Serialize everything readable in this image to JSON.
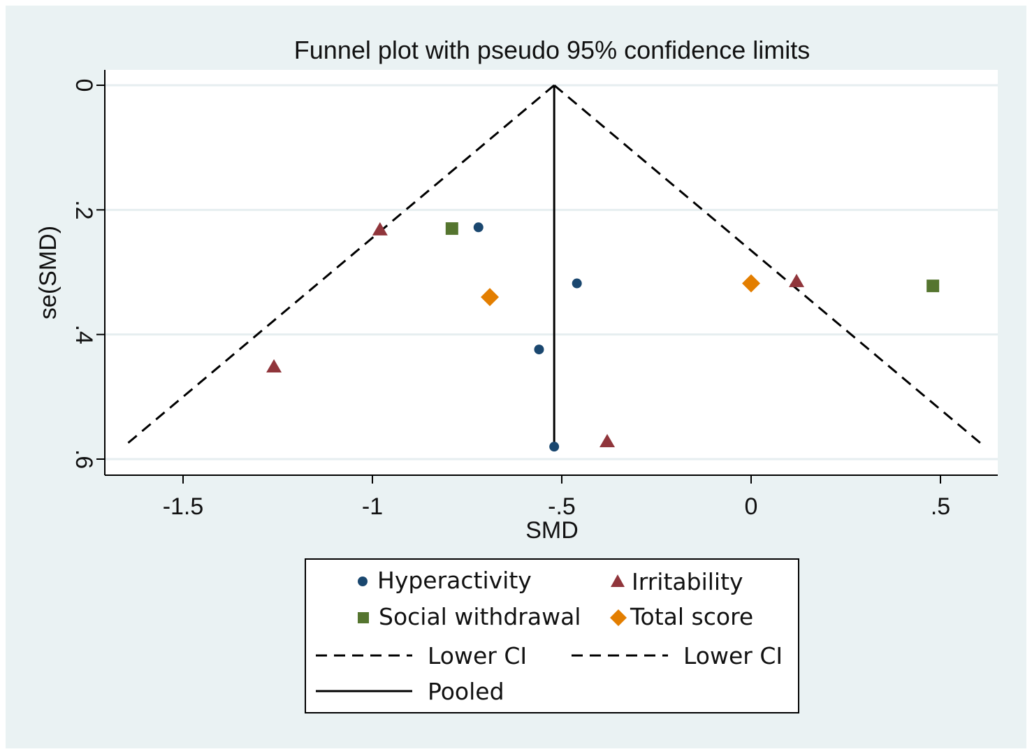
{
  "chart_data": {
    "type": "scatter",
    "title": "Funnel plot with pseudo 95% confidence limits",
    "xlabel": "SMD",
    "ylabel": "se(SMD)",
    "xlim": [
      -1.7,
      0.66
    ],
    "ylim": [
      0,
      0.62
    ],
    "y_reversed": true,
    "grid": "horizontal",
    "x_ticks": [
      {
        "value": -1.5,
        "label": "-1.5"
      },
      {
        "value": -1,
        "label": "-1"
      },
      {
        "value": -0.5,
        "label": "-.5"
      },
      {
        "value": 0,
        "label": "0"
      },
      {
        "value": 0.5,
        "label": ".5"
      }
    ],
    "y_ticks": [
      {
        "value": 0,
        "label": "0"
      },
      {
        "value": 0.2,
        "label": ".2"
      },
      {
        "value": 0.4,
        "label": ".4"
      },
      {
        "value": 0.6,
        "label": ".6"
      }
    ],
    "pooled_smd": -0.52,
    "funnel_se_max": 0.58,
    "series": [
      {
        "name": "Hyperactivity",
        "marker": "circle",
        "color": "#1a476f",
        "points": [
          {
            "x": -0.72,
            "y": 0.228
          },
          {
            "x": -0.46,
            "y": 0.318
          },
          {
            "x": -0.56,
            "y": 0.424
          },
          {
            "x": -0.52,
            "y": 0.58
          }
        ]
      },
      {
        "name": "Irritability",
        "marker": "triangle",
        "color": "#90353b",
        "points": [
          {
            "x": -0.98,
            "y": 0.232
          },
          {
            "x": -1.26,
            "y": 0.452
          },
          {
            "x": 0.12,
            "y": 0.315
          },
          {
            "x": -0.38,
            "y": 0.572
          }
        ]
      },
      {
        "name": "Social withdrawal",
        "marker": "square",
        "color": "#55752f",
        "points": [
          {
            "x": -0.79,
            "y": 0.23
          },
          {
            "x": 0.48,
            "y": 0.322
          }
        ]
      },
      {
        "name": "Total score",
        "marker": "diamond",
        "color": "#e37e00",
        "points": [
          {
            "x": 0.0,
            "y": 0.318
          },
          {
            "x": -0.69,
            "y": 0.34
          }
        ]
      }
    ],
    "lines": [
      {
        "name": "Lower CI",
        "style": "dashed"
      },
      {
        "name": "Lower CI",
        "style": "dashed"
      },
      {
        "name": "Pooled",
        "style": "solid"
      }
    ],
    "legend_position": "bottom"
  }
}
